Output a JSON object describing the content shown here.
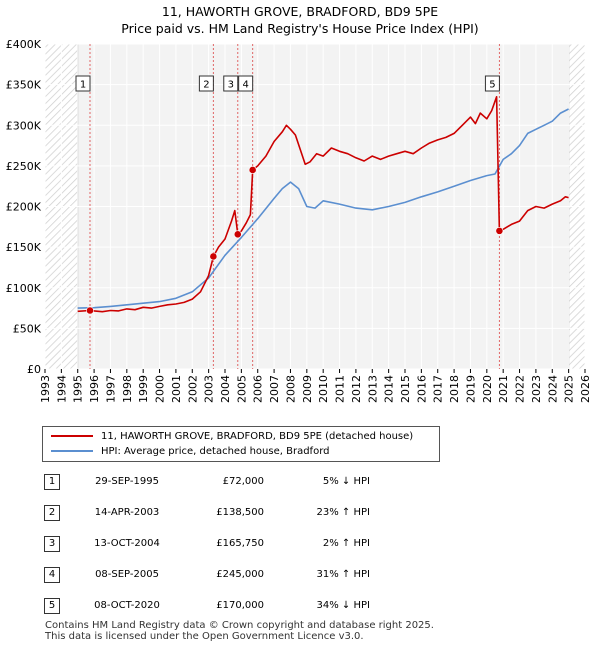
{
  "title_line1": "11, HAWORTH GROVE, BRADFORD, BD9 5PE",
  "title_line2": "Price paid vs. HM Land Registry's House Price Index (HPI)",
  "chart_data": {
    "type": "line",
    "ylim": [
      0,
      400000
    ],
    "xlim": [
      1993,
      2026
    ],
    "y_ticks": [
      {
        "value": 0,
        "label": "£0"
      },
      {
        "value": 50000,
        "label": "£50K"
      },
      {
        "value": 100000,
        "label": "£100K"
      },
      {
        "value": 150000,
        "label": "£150K"
      },
      {
        "value": 200000,
        "label": "£200K"
      },
      {
        "value": 250000,
        "label": "£250K"
      },
      {
        "value": 300000,
        "label": "£300K"
      },
      {
        "value": 350000,
        "label": "£350K"
      },
      {
        "value": 400000,
        "label": "£400K"
      }
    ],
    "x_ticks": [
      "1993",
      "1994",
      "1995",
      "1996",
      "1997",
      "1998",
      "1999",
      "2000",
      "2001",
      "2002",
      "2003",
      "2004",
      "2005",
      "2006",
      "2007",
      "2008",
      "2009",
      "2010",
      "2011",
      "2012",
      "2013",
      "2014",
      "2015",
      "2016",
      "2017",
      "2018",
      "2019",
      "2020",
      "2021",
      "2022",
      "2023",
      "2024",
      "2025",
      "2026"
    ],
    "grid": true,
    "hatched_ranges": [
      [
        1993,
        1995.0
      ],
      [
        2025.0,
        2026
      ]
    ],
    "series": [
      {
        "name": "11, HAWORTH GROVE, BRADFORD, BD9 5PE (detached house)",
        "color": "#cc0000",
        "points": [
          [
            1995.0,
            71000
          ],
          [
            1995.75,
            72000
          ],
          [
            1996.0,
            71500
          ],
          [
            1996.5,
            70500
          ],
          [
            1997.0,
            72000
          ],
          [
            1997.5,
            71500
          ],
          [
            1998.0,
            74000
          ],
          [
            1998.5,
            73000
          ],
          [
            1999.0,
            76000
          ],
          [
            1999.5,
            75000
          ],
          [
            2000.0,
            77000
          ],
          [
            2000.5,
            79000
          ],
          [
            2001.0,
            80000
          ],
          [
            2001.5,
            82000
          ],
          [
            2002.0,
            86000
          ],
          [
            2002.5,
            95000
          ],
          [
            2003.0,
            115000
          ],
          [
            2003.29,
            138500
          ],
          [
            2003.6,
            150000
          ],
          [
            2004.0,
            160000
          ],
          [
            2004.4,
            182000
          ],
          [
            2004.6,
            195000
          ],
          [
            2004.78,
            165750
          ],
          [
            2005.0,
            170000
          ],
          [
            2005.3,
            180000
          ],
          [
            2005.55,
            190000
          ],
          [
            2005.69,
            245000
          ],
          [
            2006.0,
            250000
          ],
          [
            2006.5,
            262000
          ],
          [
            2007.0,
            280000
          ],
          [
            2007.5,
            292000
          ],
          [
            2007.75,
            300000
          ],
          [
            2008.0,
            295000
          ],
          [
            2008.3,
            288000
          ],
          [
            2008.6,
            270000
          ],
          [
            2008.9,
            252000
          ],
          [
            2009.2,
            255000
          ],
          [
            2009.6,
            265000
          ],
          [
            2010.0,
            262000
          ],
          [
            2010.5,
            272000
          ],
          [
            2011.0,
            268000
          ],
          [
            2011.5,
            265000
          ],
          [
            2012.0,
            260000
          ],
          [
            2012.5,
            256000
          ],
          [
            2013.0,
            262000
          ],
          [
            2013.5,
            258000
          ],
          [
            2014.0,
            262000
          ],
          [
            2014.5,
            265000
          ],
          [
            2015.0,
            268000
          ],
          [
            2015.5,
            265000
          ],
          [
            2016.0,
            272000
          ],
          [
            2016.5,
            278000
          ],
          [
            2017.0,
            282000
          ],
          [
            2017.5,
            285000
          ],
          [
            2018.0,
            290000
          ],
          [
            2018.5,
            300000
          ],
          [
            2019.0,
            310000
          ],
          [
            2019.3,
            302000
          ],
          [
            2019.6,
            315000
          ],
          [
            2020.0,
            308000
          ],
          [
            2020.3,
            318000
          ],
          [
            2020.6,
            335000
          ],
          [
            2020.77,
            170000
          ],
          [
            2021.0,
            172000
          ],
          [
            2021.5,
            178000
          ],
          [
            2022.0,
            182000
          ],
          [
            2022.5,
            195000
          ],
          [
            2023.0,
            200000
          ],
          [
            2023.5,
            198000
          ],
          [
            2024.0,
            203000
          ],
          [
            2024.5,
            207000
          ],
          [
            2024.8,
            212000
          ],
          [
            2025.0,
            211000
          ]
        ]
      },
      {
        "name": "HPI: Average price, detached house, Bradford",
        "color": "#5b8fd0",
        "points": [
          [
            1995.0,
            75000
          ],
          [
            1996.0,
            75500
          ],
          [
            1997.0,
            77000
          ],
          [
            1998.0,
            79000
          ],
          [
            1999.0,
            81000
          ],
          [
            2000.0,
            83000
          ],
          [
            2001.0,
            87000
          ],
          [
            2002.0,
            95000
          ],
          [
            2003.0,
            112000
          ],
          [
            2004.0,
            140000
          ],
          [
            2005.0,
            162000
          ],
          [
            2006.0,
            185000
          ],
          [
            2007.0,
            210000
          ],
          [
            2007.5,
            222000
          ],
          [
            2008.0,
            230000
          ],
          [
            2008.5,
            222000
          ],
          [
            2009.0,
            200000
          ],
          [
            2009.5,
            198000
          ],
          [
            2010.0,
            207000
          ],
          [
            2011.0,
            203000
          ],
          [
            2012.0,
            198000
          ],
          [
            2013.0,
            196000
          ],
          [
            2014.0,
            200000
          ],
          [
            2015.0,
            205000
          ],
          [
            2016.0,
            212000
          ],
          [
            2017.0,
            218000
          ],
          [
            2018.0,
            225000
          ],
          [
            2019.0,
            232000
          ],
          [
            2020.0,
            238000
          ],
          [
            2020.5,
            240000
          ],
          [
            2021.0,
            258000
          ],
          [
            2021.5,
            265000
          ],
          [
            2022.0,
            275000
          ],
          [
            2022.5,
            290000
          ],
          [
            2023.0,
            295000
          ],
          [
            2023.5,
            300000
          ],
          [
            2024.0,
            305000
          ],
          [
            2024.5,
            315000
          ],
          [
            2025.0,
            320000
          ]
        ]
      }
    ],
    "sales": [
      {
        "num": "1",
        "x": 1995.75,
        "y": 72000
      },
      {
        "num": "2",
        "x": 2003.29,
        "y": 138500
      },
      {
        "num": "3",
        "x": 2004.78,
        "y": 165750
      },
      {
        "num": "4",
        "x": 2005.69,
        "y": 245000
      },
      {
        "num": "5",
        "x": 2020.77,
        "y": 170000
      }
    ]
  },
  "legend": {
    "property_label": "11, HAWORTH GROVE, BRADFORD, BD9 5PE (detached house)",
    "hpi_label": "HPI: Average price, detached house, Bradford"
  },
  "sales_table": [
    {
      "num": "1",
      "date": "29-SEP-1995",
      "price": "£72,000",
      "hpi": "5% ↓ HPI"
    },
    {
      "num": "2",
      "date": "14-APR-2003",
      "price": "£138,500",
      "hpi": "23% ↑ HPI"
    },
    {
      "num": "3",
      "date": "13-OCT-2004",
      "price": "£165,750",
      "hpi": "2% ↑ HPI"
    },
    {
      "num": "4",
      "date": "08-SEP-2005",
      "price": "£245,000",
      "hpi": "31% ↑ HPI"
    },
    {
      "num": "5",
      "date": "08-OCT-2020",
      "price": "£170,000",
      "hpi": "34% ↓ HPI"
    }
  ],
  "footer_line1": "Contains HM Land Registry data © Crown copyright and database right 2025.",
  "footer_line2": "This data is licensed under the Open Government Licence v3.0."
}
